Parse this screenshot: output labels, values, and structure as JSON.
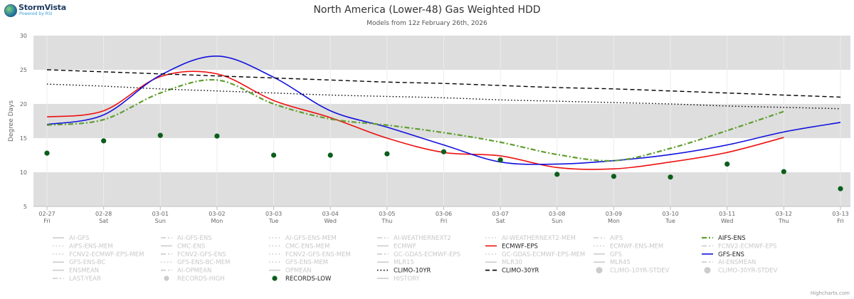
{
  "logo": {
    "brand": "StormVista",
    "tagline": "Powered by RSI"
  },
  "credits": "Highcharts.com",
  "chart_data": {
    "type": "line",
    "title": "North America (Lower-48) Gas Weighted HDD",
    "subtitle": "Models from 12z February 26th, 2026",
    "ylabel": "Degree Days",
    "ylim": [
      5,
      30
    ],
    "yticks": [
      5,
      10,
      15,
      20,
      25,
      30
    ],
    "grid": true,
    "x_categories": [
      "02-27",
      "02-28",
      "03-01",
      "03-02",
      "03-03",
      "03-04",
      "03-05",
      "03-06",
      "03-07",
      "03-08",
      "03-09",
      "03-10",
      "03-11",
      "03-12",
      "03-13"
    ],
    "x_weekdays": [
      "Fri",
      "Sat",
      "Sun",
      "Mon",
      "Tue",
      "Wed",
      "Thu",
      "Fri",
      "Sat",
      "Sun",
      "Mon",
      "Tue",
      "Wed",
      "Thu",
      "Fri"
    ],
    "series": [
      {
        "name": "ECMWF-EPS",
        "color": "#ee1111",
        "dash": "solid",
        "values": [
          18.1,
          19.0,
          24.0,
          24.4,
          20.5,
          18.0,
          15.0,
          12.9,
          12.4,
          10.7,
          10.5,
          11.5,
          12.9,
          15.1,
          null
        ]
      },
      {
        "name": "GFS-ENS",
        "color": "#1111dd",
        "dash": "solid",
        "values": [
          17.0,
          18.4,
          24.2,
          27.0,
          23.9,
          19.0,
          16.6,
          14.0,
          11.5,
          11.2,
          11.7,
          12.6,
          14.0,
          15.9,
          17.3
        ]
      },
      {
        "name": "AIFS-ENS",
        "color": "#5f9e2f",
        "dash": "dashdot",
        "values": [
          16.9,
          17.7,
          21.6,
          23.5,
          20.0,
          17.8,
          16.9,
          15.8,
          14.4,
          12.6,
          11.7,
          13.5,
          16.1,
          18.9,
          null
        ]
      },
      {
        "name": "CLIMO-10YR",
        "color": "#000000",
        "dash": "dot",
        "values": [
          22.9,
          22.6,
          22.2,
          21.9,
          21.6,
          21.3,
          21.1,
          20.9,
          20.6,
          20.4,
          20.2,
          20.0,
          19.7,
          19.5,
          19.3
        ]
      },
      {
        "name": "CLIMO-30YR",
        "color": "#000000",
        "dash": "dash",
        "values": [
          25.0,
          24.7,
          24.4,
          24.1,
          23.8,
          23.5,
          23.2,
          23.0,
          22.7,
          22.4,
          22.2,
          21.9,
          21.6,
          21.3,
          21.0
        ]
      },
      {
        "name": "RECORDS-LOW",
        "color": "#0b5e1b",
        "type": "scatter",
        "values": [
          12.8,
          14.6,
          15.4,
          15.3,
          12.5,
          12.5,
          12.7,
          13.0,
          11.8,
          9.7,
          9.4,
          9.3,
          11.2,
          10.1,
          7.6
        ]
      }
    ],
    "legend": {
      "position": "bottom",
      "columns": 6,
      "items": [
        {
          "label": "AI-GFS",
          "active": false,
          "sym": "line"
        },
        {
          "label": "AI-GFS-ENS",
          "active": false,
          "sym": "dashdot"
        },
        {
          "label": "AI-GFS-ENS-MEM",
          "active": false,
          "sym": "dot"
        },
        {
          "label": "AI-WEATHERNEXT2",
          "active": false,
          "sym": "dashdot"
        },
        {
          "label": "AI-WEATHERNEXT2-MEM",
          "active": false,
          "sym": "dot"
        },
        {
          "label": "AIFS",
          "active": false,
          "sym": "dashdot"
        },
        {
          "label": "AIFS-ENS",
          "active": true,
          "color": "#5f9e2f",
          "sym": "dashdot"
        },
        {
          "label": "AIFS-ENS-MEM",
          "active": false,
          "sym": "dot"
        },
        {
          "label": "CMC-ENS",
          "active": false,
          "sym": "line"
        },
        {
          "label": "CMC-ENS-MEM",
          "active": false,
          "sym": "dot"
        },
        {
          "label": "ECMWF",
          "active": false,
          "sym": "line"
        },
        {
          "label": "ECMWF-EPS",
          "active": true,
          "color": "#ee1111",
          "sym": "line"
        },
        {
          "label": "ECMWF-ENS-MEM",
          "active": false,
          "sym": "dot"
        },
        {
          "label": "FCNV2-ECMWF-EPS",
          "active": false,
          "sym": "dashdot"
        },
        {
          "label": "FCNV2-ECMWF-EPS-MEM",
          "active": false,
          "sym": "dot"
        },
        {
          "label": "FCNV2-GFS-ENS",
          "active": false,
          "sym": "dashdot"
        },
        {
          "label": "FCNV2-GFS-ENS-MEM",
          "active": false,
          "sym": "dot"
        },
        {
          "label": "GC-GDAS-ECMWF-EPS",
          "active": false,
          "sym": "dashdot"
        },
        {
          "label": "GC-GDAS-ECMWF-EPS-MEM",
          "active": false,
          "sym": "dot"
        },
        {
          "label": "GFS",
          "active": false,
          "sym": "line"
        },
        {
          "label": "GFS-ENS",
          "active": true,
          "color": "#1111dd",
          "sym": "line"
        },
        {
          "label": "GFS-ENS-BC",
          "active": false,
          "sym": "line"
        },
        {
          "label": "GFS-ENS-BC-MEM",
          "active": false,
          "sym": "dot"
        },
        {
          "label": "GFS-ENS-MEM",
          "active": false,
          "sym": "dot"
        },
        {
          "label": "MLR15",
          "active": false,
          "sym": "line"
        },
        {
          "label": "MLR30",
          "active": false,
          "sym": "line"
        },
        {
          "label": "MLR45",
          "active": false,
          "sym": "line"
        },
        {
          "label": "AI-ENSMEAN",
          "active": false,
          "sym": "dashdot"
        },
        {
          "label": "ENSMEAN",
          "active": false,
          "sym": "line"
        },
        {
          "label": "AI-OPMEAN",
          "active": false,
          "sym": "dashdot"
        },
        {
          "label": "OPMEAN",
          "active": false,
          "sym": "line"
        },
        {
          "label": "CLIMO-10YR",
          "active": true,
          "color": "#000000",
          "sym": "dot"
        },
        {
          "label": "CLIMO-30YR",
          "active": true,
          "color": "#000000",
          "sym": "dash"
        },
        {
          "label": "CLIMO-10YR-STDEV",
          "active": false,
          "sym": "circle"
        },
        {
          "label": "CLIMO-30YR-STDEV",
          "active": false,
          "sym": "circle"
        },
        {
          "label": "LAST-YEAR",
          "active": false,
          "sym": "dashdot"
        },
        {
          "label": "RECORDS-HIGH",
          "active": false,
          "sym": "marker"
        },
        {
          "label": "RECORDS-LOW",
          "active": true,
          "color": "#0b5e1b",
          "sym": "marker"
        },
        {
          "label": "HISTORY",
          "active": false,
          "sym": "line"
        }
      ]
    }
  }
}
